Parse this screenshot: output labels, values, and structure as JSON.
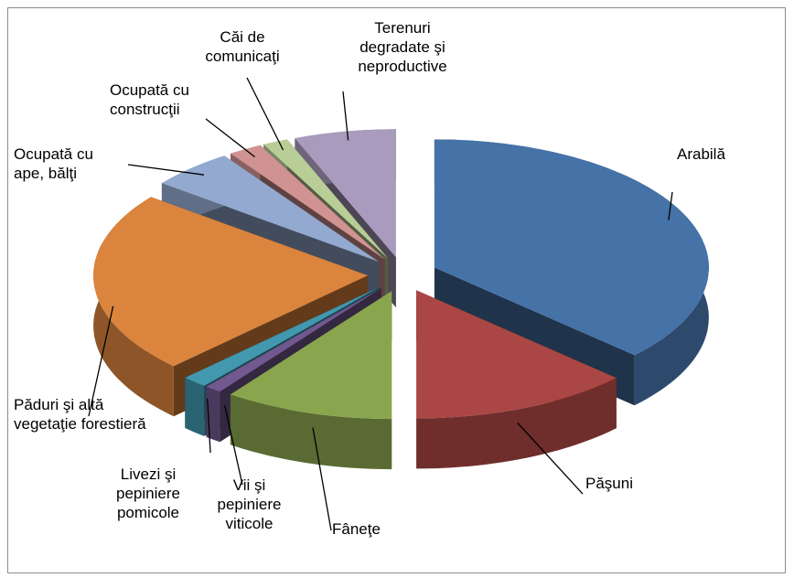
{
  "chart_data": {
    "type": "pie3d",
    "categories": [
      "Arabilă",
      "Păşuni",
      "Fâneţe",
      "Vii şi pepiniere viticole",
      "Livezi şi pepiniere pomicole",
      "Păduri şi altă vegetaţie forestieră",
      "Ocupată cu ape, bălţi",
      "Ocupată cu construcţii",
      "Căi de comunicaţi",
      "Terenuri degradate şi neproductive"
    ],
    "values": [
      37,
      13,
      10,
      1,
      1.5,
      23,
      5,
      2,
      1.5,
      6
    ],
    "colors": [
      "#4572a7",
      "#aa4643",
      "#89a54e",
      "#71588f",
      "#4198af",
      "#db843d",
      "#93a9cf",
      "#d19392",
      "#b9cd96",
      "#a99bbd"
    ]
  }
}
